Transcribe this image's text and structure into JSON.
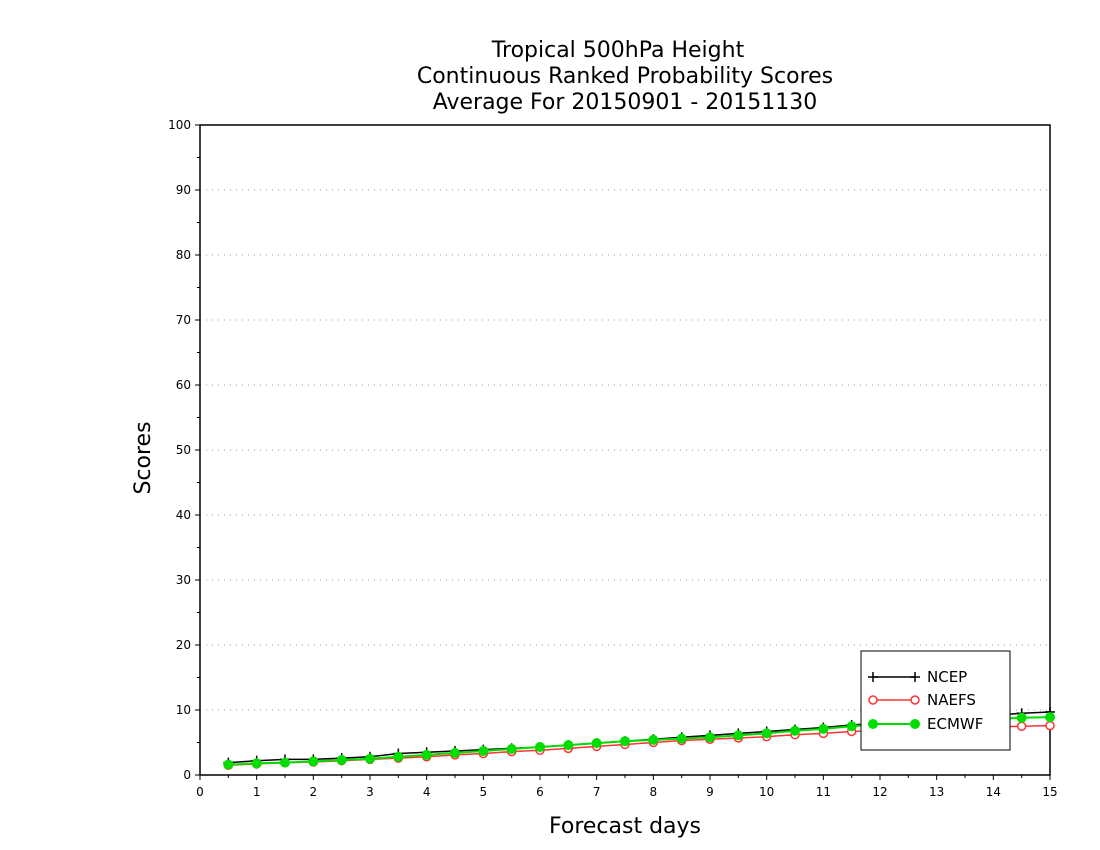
{
  "chart_data": {
    "type": "line",
    "title": [
      "Tropical 500hPa Height",
      "Continuous Ranked Probability Scores",
      "Average For 20150901 - 20151130"
    ],
    "xlabel": "Forecast days",
    "ylabel": "Scores",
    "xlim": [
      0,
      15
    ],
    "ylim": [
      0,
      100
    ],
    "xticks": [
      "0",
      "1",
      "2",
      "3",
      "4",
      "5",
      "6",
      "7",
      "8",
      "9",
      "10",
      "11",
      "12",
      "13",
      "14",
      "15"
    ],
    "yticks": [
      "0",
      "10",
      "20",
      "30",
      "40",
      "50",
      "60",
      "70",
      "80",
      "90",
      "100"
    ],
    "grid": "horizontal dotted",
    "legend_position": "bottom-right",
    "x": [
      0.5,
      1,
      1.5,
      2,
      2.5,
      3,
      3.5,
      4,
      4.5,
      5,
      5.5,
      6,
      6.5,
      7,
      7.5,
      8,
      8.5,
      9,
      9.5,
      10,
      10.5,
      11,
      11.5,
      12,
      12.5,
      13,
      13.5,
      14,
      14.5,
      15
    ],
    "series": [
      {
        "name": "NCEP",
        "color": "#000000",
        "marker": "plus",
        "values": [
          1.9,
          2.2,
          2.4,
          2.4,
          2.6,
          2.8,
          3.3,
          3.5,
          3.7,
          3.9,
          4.1,
          4.3,
          4.6,
          4.9,
          5.2,
          5.5,
          5.8,
          6.1,
          6.4,
          6.7,
          7.0,
          7.3,
          7.7,
          8.0,
          8.3,
          8.6,
          8.9,
          9.2,
          9.5,
          9.7
        ]
      },
      {
        "name": "NAEFS",
        "color": "#ff3333",
        "marker": "open-circle",
        "values": [
          1.5,
          1.7,
          1.9,
          2.0,
          2.2,
          2.4,
          2.6,
          2.8,
          3.1,
          3.3,
          3.6,
          3.8,
          4.1,
          4.4,
          4.7,
          5.0,
          5.3,
          5.5,
          5.7,
          5.9,
          6.2,
          6.4,
          6.7,
          6.9,
          7.1,
          7.2,
          7.3,
          7.4,
          7.5,
          7.6
        ]
      },
      {
        "name": "ECMWF",
        "color": "#00dd00",
        "marker": "filled-circle",
        "values": [
          1.6,
          1.8,
          1.9,
          2.1,
          2.3,
          2.5,
          2.8,
          3.1,
          3.4,
          3.7,
          4.0,
          4.3,
          4.6,
          4.9,
          5.2,
          5.4,
          5.6,
          5.8,
          6.1,
          6.4,
          6.8,
          7.1,
          7.5,
          7.8,
          8.0,
          8.2,
          8.4,
          8.6,
          8.8,
          8.9
        ]
      }
    ]
  }
}
